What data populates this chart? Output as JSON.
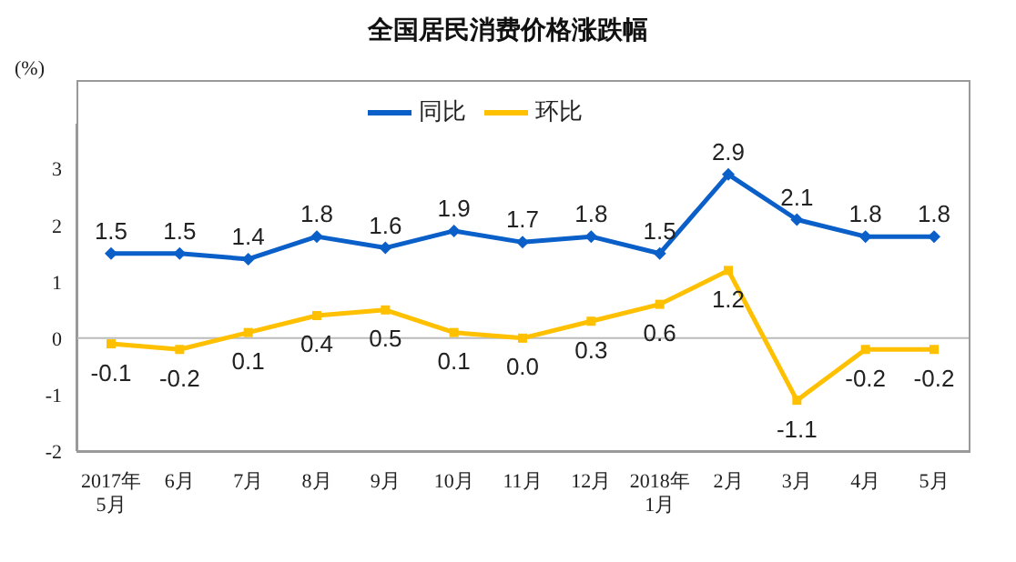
{
  "chart_data": {
    "type": "line",
    "title": "全国居民消费价格涨跌幅",
    "ylabel": "(%)",
    "categories": [
      "2017年\n5月",
      "6月",
      "7月",
      "8月",
      "9月",
      "10月",
      "11月",
      "12月",
      "2018年\n1月",
      "2月",
      "3月",
      "4月",
      "5月"
    ],
    "series": [
      {
        "name": "同比",
        "color": "#0a5fc8",
        "marker": "diamond",
        "values": [
          1.5,
          1.5,
          1.4,
          1.8,
          1.6,
          1.9,
          1.7,
          1.8,
          1.5,
          2.9,
          2.1,
          1.8,
          1.8
        ],
        "value_labels": [
          "1.5",
          "1.5",
          "1.4",
          "1.8",
          "1.6",
          "1.9",
          "1.7",
          "1.8",
          "1.5",
          "2.9",
          "2.1",
          "1.8",
          "1.8"
        ]
      },
      {
        "name": "环比",
        "color": "#ffc000",
        "marker": "square",
        "values": [
          -0.1,
          -0.2,
          0.1,
          0.4,
          0.5,
          0.1,
          0.0,
          0.3,
          0.6,
          1.2,
          -1.1,
          -0.2,
          -0.2
        ],
        "value_labels": [
          "-0.1",
          "-0.2",
          "0.1",
          "0.4",
          "0.5",
          "0.1",
          "0.0",
          "0.3",
          "0.6",
          "1.2",
          "-1.1",
          "-0.2",
          "-0.2"
        ]
      }
    ],
    "ylim": [
      -2,
      3.8
    ],
    "yticks": [
      -2,
      -1,
      0,
      1,
      2,
      3
    ],
    "ref_lines": [
      {
        "axis": "y",
        "value": 0,
        "color": "#bbbbbb"
      }
    ],
    "legend": "top"
  }
}
